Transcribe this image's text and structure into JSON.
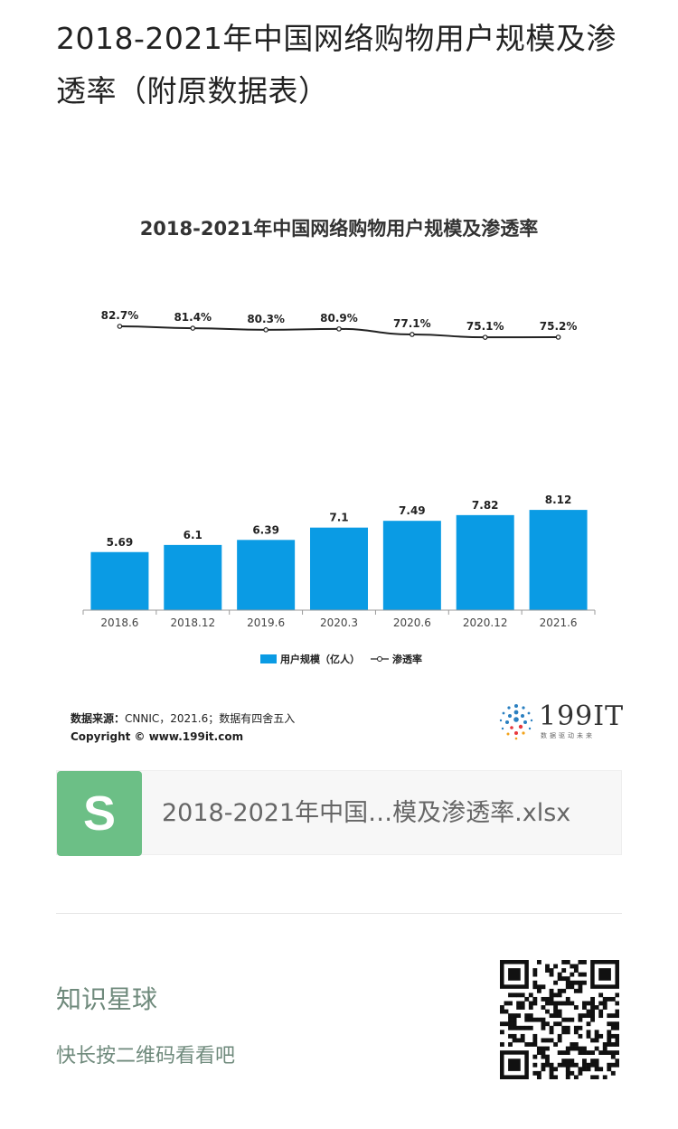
{
  "article": {
    "title": "2018-2021年中国网络购物用户规模及渗透率（附原数据表）"
  },
  "chart_data": {
    "type": "bar",
    "title": "2018-2021年中国网络购物用户规模及渗透率",
    "categories": [
      "2018.6",
      "2018.12",
      "2019.6",
      "2020.3",
      "2020.6",
      "2020.12",
      "2021.6"
    ],
    "series": [
      {
        "name": "用户规模（亿人）",
        "type": "bar",
        "color": "#0a9be4",
        "values": [
          5.69,
          6.1,
          6.39,
          7.1,
          7.49,
          7.82,
          8.12
        ],
        "labels": [
          "5.69",
          "6.1",
          "6.39",
          "7.1",
          "7.49",
          "7.82",
          "8.12"
        ]
      },
      {
        "name": "渗透率",
        "type": "line",
        "color": "#222222",
        "values": [
          82.7,
          81.4,
          80.3,
          80.9,
          77.1,
          75.1,
          75.2
        ],
        "labels": [
          "82.7%",
          "81.4%",
          "80.3%",
          "80.9%",
          "77.1%",
          "75.1%",
          "75.2%"
        ]
      }
    ],
    "legend": [
      "用户规模（亿人）",
      "渗透率"
    ],
    "legend_position": "bottom",
    "grid": false
  },
  "source": {
    "label": "数据来源：",
    "text": "CNNIC，2021.6；数据有四舍五入",
    "copyright": "Copyright © www.199it.com"
  },
  "logo": {
    "name": "199IT",
    "tagline": "数据驱动未来",
    "icon": "dot-sphere-logo-icon"
  },
  "attachment": {
    "icon": "spreadsheet-s-icon",
    "icon_letter": "S",
    "filename": "2018-2021年中国…模及渗透率.xlsx",
    "color": "#6cbf86"
  },
  "footer": {
    "title": "知识星球",
    "subtitle": "快长按二维码看看吧",
    "qr_icon": "qr-code-icon"
  }
}
